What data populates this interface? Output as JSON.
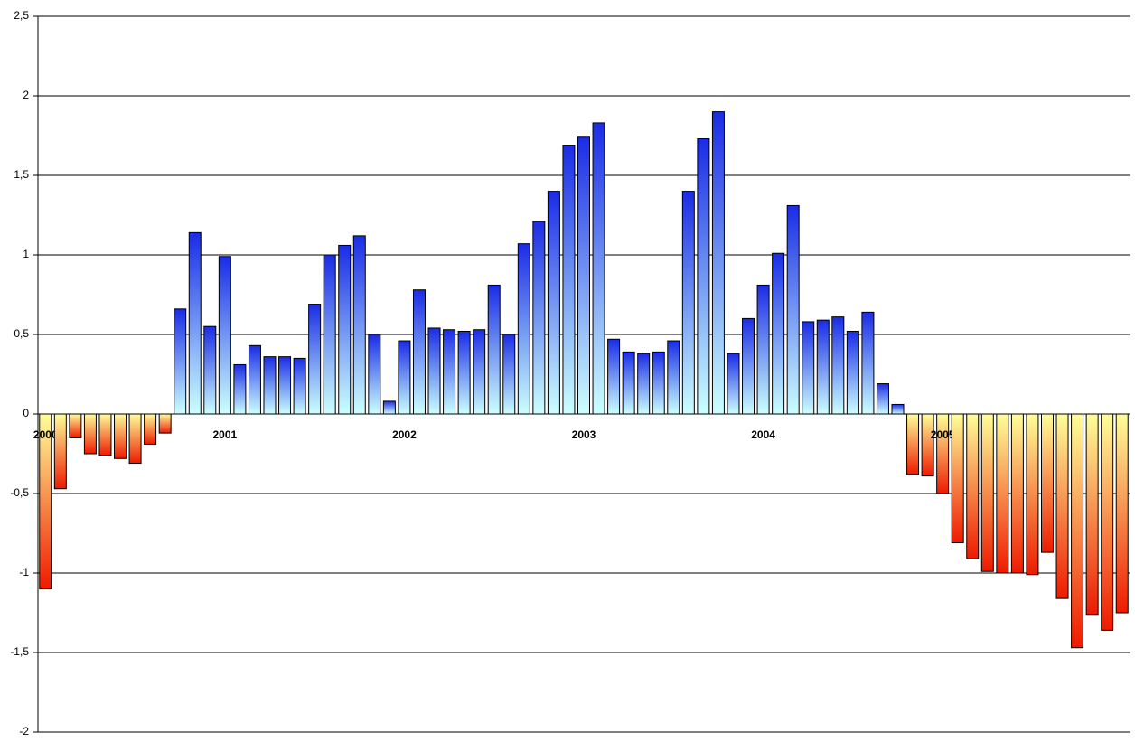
{
  "chart_data": {
    "type": "bar",
    "categories": [
      "2000",
      null,
      null,
      null,
      null,
      null,
      null,
      null,
      null,
      null,
      null,
      null,
      "2001",
      null,
      null,
      null,
      null,
      null,
      null,
      null,
      null,
      null,
      null,
      null,
      "2002",
      null,
      null,
      null,
      null,
      null,
      null,
      null,
      null,
      null,
      null,
      null,
      "2003",
      null,
      null,
      null,
      null,
      null,
      null,
      null,
      null,
      null,
      null,
      null,
      "2004",
      null,
      null,
      null,
      null,
      null,
      null,
      null,
      null,
      null,
      null,
      null,
      "2005",
      null,
      null,
      null,
      null,
      null,
      null,
      null,
      null,
      null,
      null,
      null,
      null
    ],
    "values": [
      -1.1,
      -0.47,
      -0.15,
      -0.25,
      -0.26,
      -0.28,
      -0.31,
      -0.19,
      -0.12,
      0.66,
      1.14,
      0.55,
      0.99,
      0.31,
      0.43,
      0.36,
      0.36,
      0.35,
      0.69,
      1.0,
      1.06,
      1.12,
      0.5,
      0.08,
      0.46,
      0.78,
      0.54,
      0.53,
      0.52,
      0.53,
      0.81,
      0.5,
      1.07,
      1.21,
      1.4,
      1.69,
      1.74,
      1.83,
      0.47,
      0.39,
      0.38,
      0.39,
      0.46,
      1.4,
      1.73,
      1.9,
      0.38,
      0.6,
      0.81,
      1.01,
      1.31,
      0.58,
      0.59,
      0.61,
      0.52,
      0.64,
      0.19,
      0.06,
      -0.38,
      -0.39,
      -0.5,
      -0.81,
      -0.91,
      -0.99,
      -1.0,
      -1.0,
      -1.01,
      -0.87,
      -1.16,
      -1.47,
      -1.26,
      -1.36,
      -1.25
    ],
    "positive_colors": [
      "#1a2ce6",
      "#ccffff"
    ],
    "negative_colors": [
      "#ffff99",
      "#ee1a00"
    ],
    "ylim": [
      -2,
      2.5
    ],
    "yticks": [
      -2,
      {
        "value": -1.5,
        "label": "-1,5"
      },
      -1,
      {
        "value": -0.5,
        "label": "-0,5"
      },
      0,
      {
        "value": 0.5,
        "label": "0,5"
      },
      1,
      {
        "value": 1.5,
        "label": "1,5"
      },
      2,
      {
        "value": 2.5,
        "label": "2,5"
      }
    ],
    "grid": true
  }
}
